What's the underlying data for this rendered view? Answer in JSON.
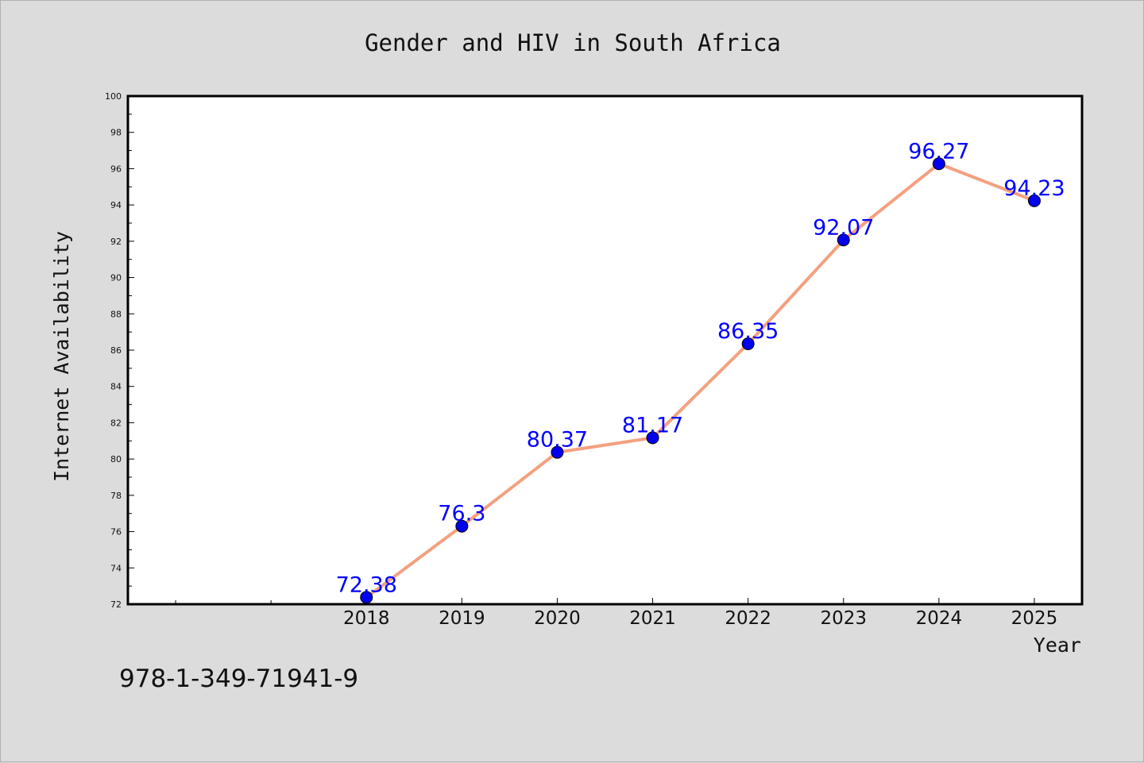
{
  "chart_data": {
    "type": "line",
    "title": "Gender and HIV in South Africa",
    "xlabel": "Year",
    "ylabel": "Internet Availability",
    "x": [
      "2018",
      "2019",
      "2020",
      "2021",
      "2022",
      "2023",
      "2024",
      "2025"
    ],
    "series": [
      {
        "values": [
          72.38,
          76.3,
          80.37,
          81.17,
          86.35,
          92.07,
          96.27,
          94.23
        ],
        "data_labels": [
          "72.38",
          "76.3",
          "80.37",
          "81.17",
          "86.35",
          "92.07",
          "96.27",
          "94.23"
        ],
        "line_color": "#f4a07f",
        "marker_color": "#0000ee"
      }
    ],
    "ylim": [
      72,
      100
    ],
    "yticks": [
      "72",
      "74",
      "76",
      "78",
      "80",
      "82",
      "84",
      "86",
      "88",
      "90",
      "92",
      "94",
      "96",
      "98",
      "100"
    ],
    "x_index_range": [
      -2.5,
      7.5
    ],
    "grid": false,
    "legend": "none",
    "background_color": "#dcdcdc",
    "plot_background_color": "#ffffff",
    "data_label_color": "#0000ff"
  },
  "footer": {
    "isbn": "978-1-349-71941-9"
  }
}
